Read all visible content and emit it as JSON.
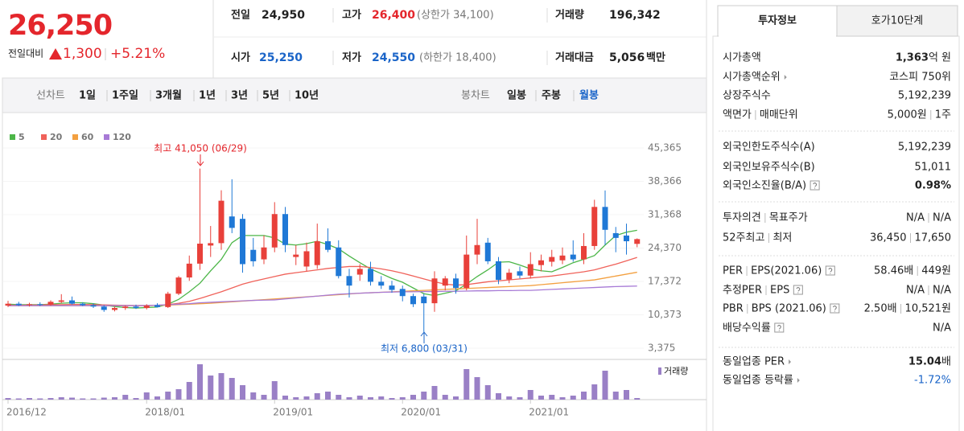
{
  "header": {
    "price": "26,250",
    "change_label": "전일대비",
    "change": "1,300",
    "rate": "+5.21%",
    "stats": [
      {
        "label": "전일",
        "value": "24,950"
      },
      {
        "label": "고가",
        "value": "26,400",
        "note": "(상한가 34,100)"
      },
      {
        "label": "거래량",
        "value": "196,342"
      },
      {
        "label": "시가",
        "value": "25,250"
      },
      {
        "label": "저가",
        "value": "24,550",
        "note": "(하한가 18,400)"
      },
      {
        "label": "거래대금",
        "value": "5,056",
        "unit": "백만"
      }
    ]
  },
  "tabs": {
    "line_label": "선차트",
    "line_periods": [
      "1일",
      "1주일",
      "3개월",
      "1년",
      "3년",
      "5년",
      "10년"
    ],
    "candle_label": "봉차트",
    "candle_periods": [
      "일봉",
      "주봉",
      "월봉"
    ]
  },
  "chart_data": {
    "type": "candlestick",
    "categories": [
      "2016/12",
      null,
      null,
      null,
      null,
      null,
      null,
      null,
      null,
      null,
      null,
      null,
      null,
      "2018/01",
      null,
      null,
      null,
      null,
      null,
      null,
      null,
      null,
      null,
      null,
      null,
      "2019/01",
      null,
      null,
      null,
      null,
      null,
      null,
      null,
      null,
      null,
      null,
      null,
      "2020/01",
      null,
      null,
      null,
      null,
      null,
      null,
      null,
      null,
      null,
      null,
      null,
      "2021/01",
      null,
      null,
      null,
      null,
      null,
      null,
      null,
      null,
      null,
      null
    ],
    "open": [
      12300,
      12700,
      12400,
      12600,
      12500,
      13100,
      13400,
      12700,
      12400,
      12100,
      11400,
      11800,
      12100,
      11800,
      12400,
      12000,
      14800,
      18200,
      21100,
      24900,
      25400,
      31000,
      30500,
      24000,
      22000,
      24500,
      31500,
      22500,
      20500,
      20800,
      25800,
      24500,
      18500,
      18800,
      20000,
      17300,
      16500,
      15800,
      14300,
      14200,
      12800,
      16500,
      18000,
      16000,
      23000,
      25500,
      21600,
      17800,
      19500,
      18600,
      20800,
      21500,
      21800,
      23000,
      22000,
      24800,
      33000,
      27500,
      27000,
      25250
    ],
    "high": [
      13300,
      13100,
      12900,
      13000,
      13400,
      14700,
      14200,
      13000,
      12800,
      12400,
      12100,
      12300,
      12500,
      12600,
      12800,
      15200,
      18500,
      22800,
      41050,
      29000,
      36500,
      38800,
      31500,
      26500,
      27000,
      34000,
      33000,
      25000,
      25500,
      29500,
      28500,
      26000,
      20000,
      21000,
      21500,
      18500,
      17500,
      16500,
      14800,
      14800,
      19500,
      18500,
      19000,
      27000,
      30500,
      26500,
      22500,
      20000,
      20500,
      23500,
      23000,
      24000,
      24500,
      26000,
      27500,
      34500,
      36450,
      28800,
      29500,
      26400
    ],
    "low": [
      12000,
      12200,
      12100,
      12200,
      12300,
      12800,
      12500,
      12200,
      11800,
      11000,
      11100,
      11400,
      11600,
      11500,
      11900,
      11800,
      14500,
      17500,
      19800,
      22500,
      24000,
      27500,
      19200,
      20500,
      21000,
      23500,
      23500,
      20800,
      19500,
      20000,
      23500,
      18000,
      14000,
      17500,
      16500,
      15800,
      15000,
      13200,
      12000,
      6800,
      11000,
      15500,
      14800,
      15500,
      21000,
      21000,
      16800,
      17000,
      18000,
      18000,
      19500,
      20500,
      21000,
      21500,
      21000,
      24000,
      25000,
      23500,
      23000,
      24550
    ],
    "close": [
      12700,
      12400,
      12600,
      12500,
      13100,
      13400,
      12700,
      12400,
      12100,
      11400,
      11800,
      12100,
      11800,
      12300,
      12000,
      14800,
      18200,
      21100,
      25300,
      25400,
      34300,
      28600,
      21000,
      21600,
      24500,
      31500,
      25000,
      23000,
      23700,
      25800,
      24000,
      18500,
      16500,
      20000,
      17300,
      16500,
      15600,
      14300,
      12600,
      12800,
      18000,
      18000,
      16000,
      23000,
      25000,
      21600,
      17700,
      19200,
      18600,
      21000,
      21800,
      22500,
      22800,
      22000,
      24800,
      33000,
      28200,
      26500,
      25800,
      26250
    ],
    "up_color": "#e8403a",
    "down_color": "#1f78d6",
    "series": [
      {
        "name": "5",
        "color": "#4cb648",
        "values": [
          12600,
          12500,
          12500,
          12500,
          12600,
          12800,
          12900,
          12900,
          12700,
          12400,
          12100,
          11900,
          11800,
          11900,
          12000,
          12600,
          13600,
          15200,
          17000,
          19600,
          22000,
          25500,
          27000,
          27000,
          27000,
          26500,
          25200,
          25000,
          25300,
          25800,
          25100,
          24200,
          22700,
          21300,
          20000,
          19000,
          18000,
          17200,
          16000,
          14800,
          14400,
          14900,
          15400,
          16800,
          18400,
          19800,
          21400,
          21500,
          20800,
          20000,
          19600,
          19400,
          20300,
          21300,
          22000,
          22800,
          25000,
          27000,
          27700,
          28100
        ]
      },
      {
        "name": "20",
        "color": "#f0625a",
        "values": [
          12400,
          12400,
          12400,
          12450,
          12500,
          12500,
          12550,
          12550,
          12500,
          12450,
          12400,
          12350,
          12300,
          12300,
          12350,
          12500,
          12800,
          13200,
          13800,
          14500,
          15200,
          16000,
          16800,
          17400,
          17900,
          18400,
          18900,
          19200,
          19500,
          19800,
          20100,
          20300,
          20500,
          20500,
          20300,
          20000,
          19600,
          19100,
          18500,
          17900,
          17300,
          16800,
          16600,
          16700,
          17000,
          17300,
          17500,
          17700,
          17900,
          18100,
          18300,
          18500,
          18800,
          19100,
          19400,
          19800,
          20400,
          21000,
          21700,
          22400
        ]
      },
      {
        "name": "60",
        "color": "#f3a040",
        "values": [
          12300,
          12300,
          12300,
          12300,
          12300,
          12300,
          12300,
          12300,
          12300,
          12300,
          12300,
          12300,
          12300,
          12300,
          12350,
          12400,
          12500,
          12600,
          12700,
          12800,
          12950,
          13100,
          13250,
          13400,
          13550,
          13700,
          13850,
          14000,
          14150,
          14300,
          14450,
          14600,
          14750,
          14900,
          15000,
          15100,
          15200,
          15300,
          15400,
          15500,
          15600,
          15700,
          15800,
          15900,
          16000,
          16100,
          16200,
          16300,
          16400,
          16500,
          16700,
          16900,
          17100,
          17300,
          17500,
          17700,
          18100,
          18500,
          18900,
          19300
        ]
      },
      {
        "name": "120",
        "color": "#a77ad6",
        "values": [
          12300,
          12300,
          12300,
          12300,
          12300,
          12300,
          12300,
          12300,
          12300,
          12300,
          12300,
          12300,
          12300,
          12300,
          12400,
          12500,
          12600,
          12700,
          12900,
          13000,
          13100,
          13200,
          13300,
          13400,
          13450,
          13500,
          13700,
          13900,
          14100,
          14300,
          14500,
          14700,
          14800,
          14900,
          15000,
          15100,
          15150,
          15200,
          15200,
          15250,
          15250,
          15300,
          15300,
          15350,
          15400,
          15400,
          15450,
          15450,
          15500,
          15500,
          15600,
          15700,
          15800,
          15900,
          16000,
          16100,
          16200,
          16300,
          16350,
          16400
        ]
      }
    ],
    "volume": [
      400,
      300,
      400,
      300,
      400,
      600,
      500,
      300,
      300,
      500,
      600,
      1200,
      400,
      1800,
      800,
      2000,
      2600,
      4400,
      8800,
      6000,
      6600,
      5400,
      3600,
      1800,
      1200,
      4600,
      1000,
      600,
      800,
      1600,
      2000,
      1200,
      600,
      1000,
      600,
      800,
      400,
      600,
      1200,
      2000,
      3400,
      1200,
      800,
      7600,
      5600,
      3600,
      1600,
      800,
      600,
      2400,
      1000,
      1200,
      600,
      1000,
      2000,
      3800,
      7200,
      2000,
      2400,
      400
    ],
    "volume_ylim": [
      0,
      9000
    ],
    "volume_color": "#9a80c6",
    "volume_label": "거래량",
    "ylim": [
      3375,
      45365
    ],
    "yticks": [
      {
        "value": 45365,
        "label": "45,365"
      },
      {
        "value": 38366,
        "label": "38,366"
      },
      {
        "value": 31368,
        "label": "31,368"
      },
      {
        "value": 24370,
        "label": "24,370"
      },
      {
        "value": 17372,
        "label": "17,372"
      },
      {
        "value": 10373,
        "label": "10,373"
      },
      {
        "value": 3375,
        "label": "3,375"
      }
    ],
    "annotations": [
      "최고 41,050 (06/29)",
      "최저 6,800 (03/31)"
    ]
  },
  "info": {
    "tabs": [
      "투자정보",
      "호가10단계"
    ],
    "rows": [
      {
        "label": "시가총액",
        "value": "1,363",
        "unit": "억 원"
      },
      {
        "label": "시가총액순위",
        "value": "코스피 750위"
      },
      {
        "label": "상장주식수",
        "value": "5,192,239"
      },
      {
        "label": [
          "액면가",
          "매매단위"
        ],
        "value": [
          "5,000원",
          "1주"
        ]
      },
      {
        "label": "외국인한도주식수(A)",
        "value": "5,192,239"
      },
      {
        "label": "외국인보유주식수(B)",
        "value": "51,011"
      },
      {
        "label": "외국인소진율(B/A)",
        "value": "0.98%"
      },
      {
        "label": [
          "투자의견",
          "목표주가"
        ],
        "value": [
          "N/A",
          "N/A"
        ]
      },
      {
        "label": [
          "52주최고",
          "최저"
        ],
        "value": [
          "36,450",
          "17,650"
        ]
      },
      {
        "label": [
          "PER",
          "EPS(2021.06)"
        ],
        "value": [
          "58.46배",
          "449원"
        ]
      },
      {
        "label": [
          "추정PER",
          "EPS"
        ],
        "value": [
          "N/A",
          "N/A"
        ]
      },
      {
        "label": [
          "PBR",
          "BPS (2021.06)"
        ],
        "value": [
          "2.50배",
          "10,521원"
        ]
      },
      {
        "label": "배당수익률",
        "value": "N/A"
      },
      {
        "label": "동일업종 PER",
        "value": "15.04",
        "unit": "배"
      },
      {
        "label": "동일업종 등락률",
        "value": "-1.72%"
      }
    ]
  }
}
